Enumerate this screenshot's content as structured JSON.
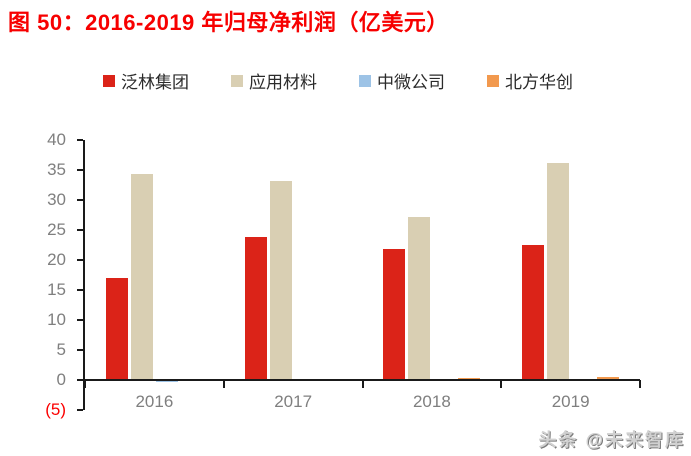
{
  "colors": {
    "title": "#f70000",
    "axis_line": "#1a1a1a",
    "axis_text": "#7f7f7f",
    "negative_tick_label": "#fb0000",
    "legend_text": "#2b2b2b",
    "watermark": "#d0d0d0"
  },
  "watermark": "头条 @未来智库",
  "chart_data": {
    "type": "bar",
    "title": "图 50：2016-2019 年归母净利润（亿美元）",
    "categories": [
      "2016",
      "2017",
      "2018",
      "2019"
    ],
    "series": [
      {
        "key": "lam",
        "name": "泛林集团",
        "color": "#db2318",
        "values": [
          17.0,
          23.8,
          21.9,
          22.5
        ]
      },
      {
        "key": "amat",
        "name": "应用材料",
        "color": "#d9cfb3",
        "values": [
          34.3,
          33.1,
          27.1,
          36.2
        ]
      },
      {
        "key": "amec",
        "name": "中微公司",
        "color": "#9dc3e6",
        "values": [
          -0.3,
          0.05,
          0.1,
          0.25
        ]
      },
      {
        "key": "naura",
        "name": "北方华创",
        "color": "#f2994e",
        "values": [
          0.1,
          0.2,
          0.35,
          0.45
        ]
      }
    ],
    "xlabel": "",
    "ylabel": "",
    "ylim": [
      -5,
      40
    ],
    "y_ticks": [
      {
        "label": "40",
        "value": 40
      },
      {
        "label": "35",
        "value": 35
      },
      {
        "label": "30",
        "value": 30
      },
      {
        "label": "25",
        "value": 25
      },
      {
        "label": "20",
        "value": 20
      },
      {
        "label": "15",
        "value": 15
      },
      {
        "label": "10",
        "value": 10
      },
      {
        "label": "5",
        "value": 5
      },
      {
        "label": "0",
        "value": 0
      },
      {
        "label": "(5)",
        "value": -5,
        "negative": true
      }
    ],
    "grid": false,
    "legend_position": "top"
  }
}
